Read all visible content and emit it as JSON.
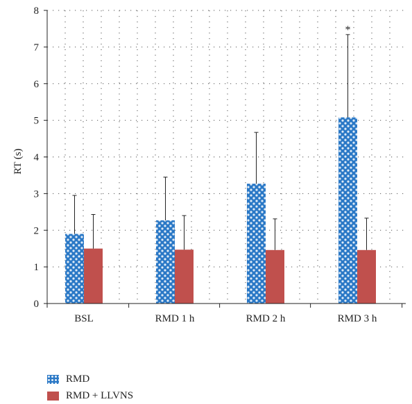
{
  "chart_data": {
    "type": "bar",
    "categories": [
      "BSL",
      "RMD 1 h",
      "RMD 2 h",
      "RMD 3 h"
    ],
    "series": [
      {
        "name": "RMD",
        "values": [
          1.9,
          2.27,
          3.27,
          5.08
        ],
        "error": [
          1.05,
          1.18,
          1.4,
          2.26
        ],
        "color": "#2a78c6",
        "pattern": "dots"
      },
      {
        "name": "RMD + LLVNS",
        "values": [
          1.5,
          1.47,
          1.46,
          1.46
        ],
        "error": [
          0.93,
          0.93,
          0.85,
          0.87
        ],
        "color": "#c0504d"
      }
    ],
    "title": "",
    "xlabel": "",
    "ylabel": "RT (s)",
    "ylim": [
      0,
      8
    ],
    "yticks": [
      0,
      1,
      2,
      3,
      4,
      5,
      6,
      7,
      8
    ],
    "grid": true,
    "legend_position": "bottom-left",
    "annotations": [
      {
        "category": "RMD 3 h",
        "series": "RMD",
        "text": "*"
      }
    ]
  }
}
